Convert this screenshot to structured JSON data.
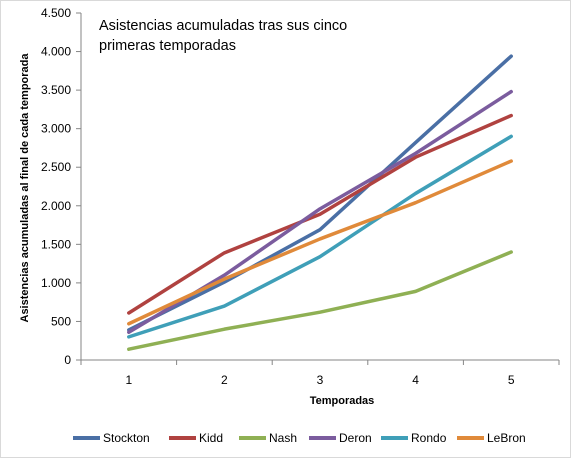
{
  "chart_data": {
    "type": "line",
    "title_lines": [
      "Asistencias acumuladas tras sus cinco",
      "primeras temporadas"
    ],
    "xlabel": "Temporadas",
    "ylabel": "Asistencias acumuladas al final de cada temporada",
    "x": [
      1,
      2,
      3,
      4,
      5
    ],
    "x_tick_labels": [
      "1",
      "2",
      "3",
      "4",
      "5"
    ],
    "ylim": [
      0,
      4500
    ],
    "y_ticks": [
      0,
      500,
      1000,
      1500,
      2000,
      2500,
      3000,
      3500,
      4000,
      4500
    ],
    "y_tick_labels": [
      "0",
      "500",
      "1.000",
      "1.500",
      "2.000",
      "2.500",
      "3.000",
      "3.500",
      "4.000",
      "4.500"
    ],
    "grid": false,
    "legend_position": "bottom",
    "series": [
      {
        "name": "Stockton",
        "color": "#4a6fa5",
        "values": [
          390,
          1010,
          1690,
          2820,
          3940
        ]
      },
      {
        "name": "Kidd",
        "color": "#b04240",
        "values": [
          610,
          1390,
          1890,
          2630,
          3170
        ]
      },
      {
        "name": "Nash",
        "color": "#8fb054",
        "values": [
          140,
          400,
          620,
          890,
          1400
        ]
      },
      {
        "name": "Deron",
        "color": "#7b5c9e",
        "values": [
          360,
          1100,
          1960,
          2680,
          3480
        ]
      },
      {
        "name": "Rondo",
        "color": "#3f9fb8",
        "values": [
          300,
          700,
          1340,
          2160,
          2900
        ]
      },
      {
        "name": "LeBron",
        "color": "#e08a3a",
        "values": [
          470,
          1050,
          1570,
          2040,
          2580
        ]
      }
    ]
  }
}
